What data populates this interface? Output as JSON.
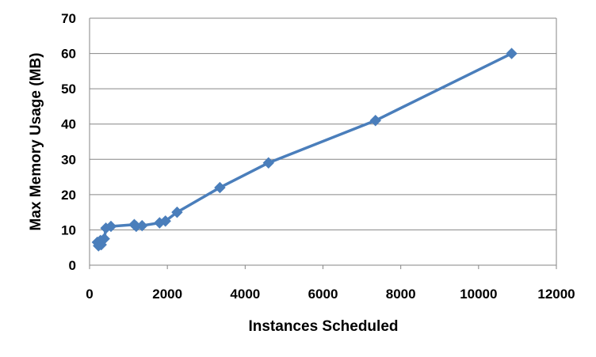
{
  "chart_data": {
    "type": "scatter",
    "xlabel": "Instances Scheduled",
    "ylabel": "Max Memory Usage (MB)",
    "xlim": [
      0,
      12000
    ],
    "ylim": [
      0,
      70
    ],
    "x_ticks": [
      0,
      2000,
      4000,
      6000,
      8000,
      10000,
      12000
    ],
    "y_ticks": [
      0,
      10,
      20,
      30,
      40,
      50,
      60,
      70
    ],
    "grid": "horizontal",
    "legend": "none",
    "series": [
      {
        "color": "#4a7ebb",
        "marker": "diamond",
        "line": true,
        "points": [
          {
            "x": 200,
            "y": 6.5
          },
          {
            "x": 230,
            "y": 5.5
          },
          {
            "x": 280,
            "y": 7.0
          },
          {
            "x": 300,
            "y": 5.8
          },
          {
            "x": 380,
            "y": 7.5
          },
          {
            "x": 420,
            "y": 10.5
          },
          {
            "x": 550,
            "y": 11.0
          },
          {
            "x": 1150,
            "y": 11.5
          },
          {
            "x": 1200,
            "y": 11.0
          },
          {
            "x": 1350,
            "y": 11.2
          },
          {
            "x": 1800,
            "y": 12.0
          },
          {
            "x": 1950,
            "y": 12.5
          },
          {
            "x": 2250,
            "y": 15.0
          },
          {
            "x": 3350,
            "y": 22.0
          },
          {
            "x": 4600,
            "y": 29.0
          },
          {
            "x": 7350,
            "y": 41.0
          },
          {
            "x": 10850,
            "y": 60.0
          }
        ]
      }
    ]
  }
}
